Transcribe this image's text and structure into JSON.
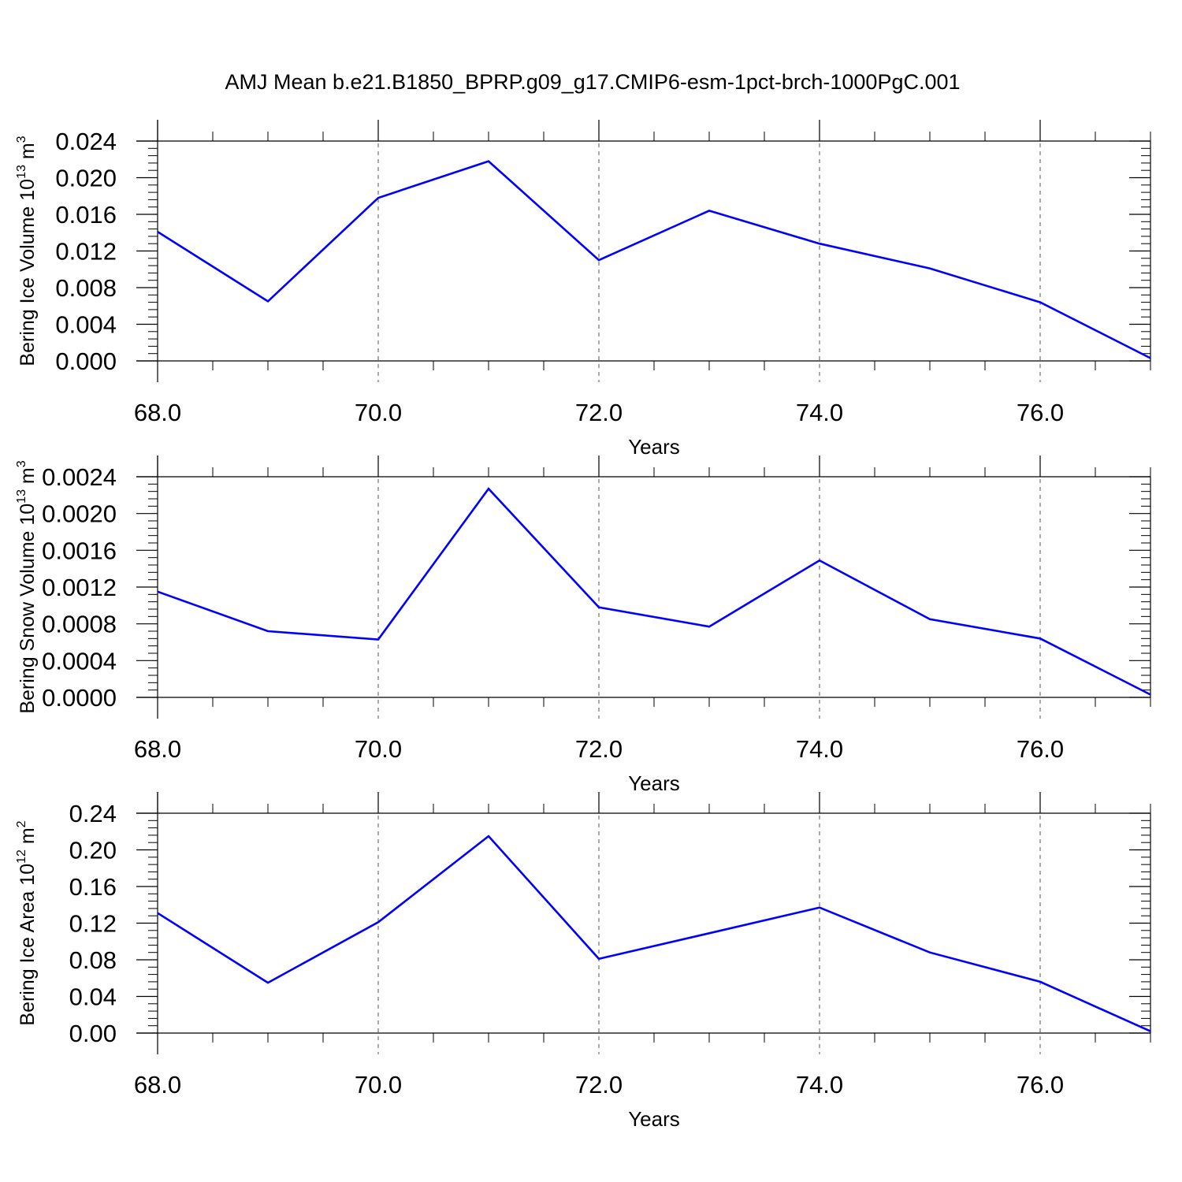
{
  "title": "AMJ Mean b.e21.B1850_BPRP.g09_g17.CMIP6-esm-1pct-brch-1000PgC.001",
  "colors": {
    "line": "#0000ff",
    "axis": "#000000",
    "grid": "#000000"
  },
  "chart_data": [
    {
      "type": "line",
      "xlabel": "Years",
      "ylabel": {
        "text": "Bering Ice Volume 10",
        "exp": "13",
        "unit": " m",
        "unit_exp": "3"
      },
      "x": [
        68,
        69,
        70,
        71,
        72,
        73,
        74,
        75,
        76,
        77
      ],
      "values": [
        0.0141,
        0.0065,
        0.0178,
        0.0218,
        0.011,
        0.0164,
        0.0128,
        0.0101,
        0.0064,
        0.0003
      ],
      "xlim": [
        68,
        77
      ],
      "ylim": [
        0,
        0.024
      ],
      "xticks": [
        "68.0",
        "70.0",
        "72.0",
        "74.0",
        "76.0"
      ],
      "xtick_values": [
        68,
        70,
        72,
        74,
        76
      ],
      "yticks": [
        "0.000",
        "0.004",
        "0.008",
        "0.012",
        "0.016",
        "0.020",
        "0.024"
      ],
      "ytick_values": [
        0,
        0.004,
        0.008,
        0.012,
        0.016,
        0.02,
        0.024
      ],
      "grid": "vertical dashed at major x ticks"
    },
    {
      "type": "line",
      "xlabel": "Years",
      "ylabel": {
        "text": "Bering Snow Volume 10",
        "exp": "13",
        "unit": " m",
        "unit_exp": "3"
      },
      "x": [
        68,
        69,
        70,
        71,
        72,
        73,
        74,
        75,
        76,
        77
      ],
      "values": [
        0.00115,
        0.00072,
        0.00063,
        0.00227,
        0.00098,
        0.00077,
        0.00149,
        0.00085,
        0.00064,
        3e-05
      ],
      "xlim": [
        68,
        77
      ],
      "ylim": [
        0,
        0.0024
      ],
      "xticks": [
        "68.0",
        "70.0",
        "72.0",
        "74.0",
        "76.0"
      ],
      "xtick_values": [
        68,
        70,
        72,
        74,
        76
      ],
      "yticks": [
        "0.0000",
        "0.0004",
        "0.0008",
        "0.0012",
        "0.0016",
        "0.0020",
        "0.0024"
      ],
      "ytick_values": [
        0,
        0.0004,
        0.0008,
        0.0012,
        0.0016,
        0.002,
        0.0024
      ],
      "grid": "vertical dashed at major x ticks"
    },
    {
      "type": "line",
      "xlabel": "Years",
      "ylabel": {
        "text": "Bering Ice Area 10",
        "exp": "12",
        "unit": " m",
        "unit_exp": "2"
      },
      "x": [
        68,
        69,
        70,
        71,
        72,
        73,
        74,
        75,
        76,
        77
      ],
      "values": [
        0.131,
        0.055,
        0.121,
        0.215,
        0.081,
        0.109,
        0.137,
        0.088,
        0.056,
        0.002
      ],
      "xlim": [
        68,
        77
      ],
      "ylim": [
        0,
        0.24
      ],
      "xticks": [
        "68.0",
        "70.0",
        "72.0",
        "74.0",
        "76.0"
      ],
      "xtick_values": [
        68,
        70,
        72,
        74,
        76
      ],
      "yticks": [
        "0.00",
        "0.04",
        "0.08",
        "0.12",
        "0.16",
        "0.20",
        "0.24"
      ],
      "ytick_values": [
        0,
        0.04,
        0.08,
        0.12,
        0.16,
        0.2,
        0.24
      ],
      "grid": "vertical dashed at major x ticks"
    }
  ]
}
